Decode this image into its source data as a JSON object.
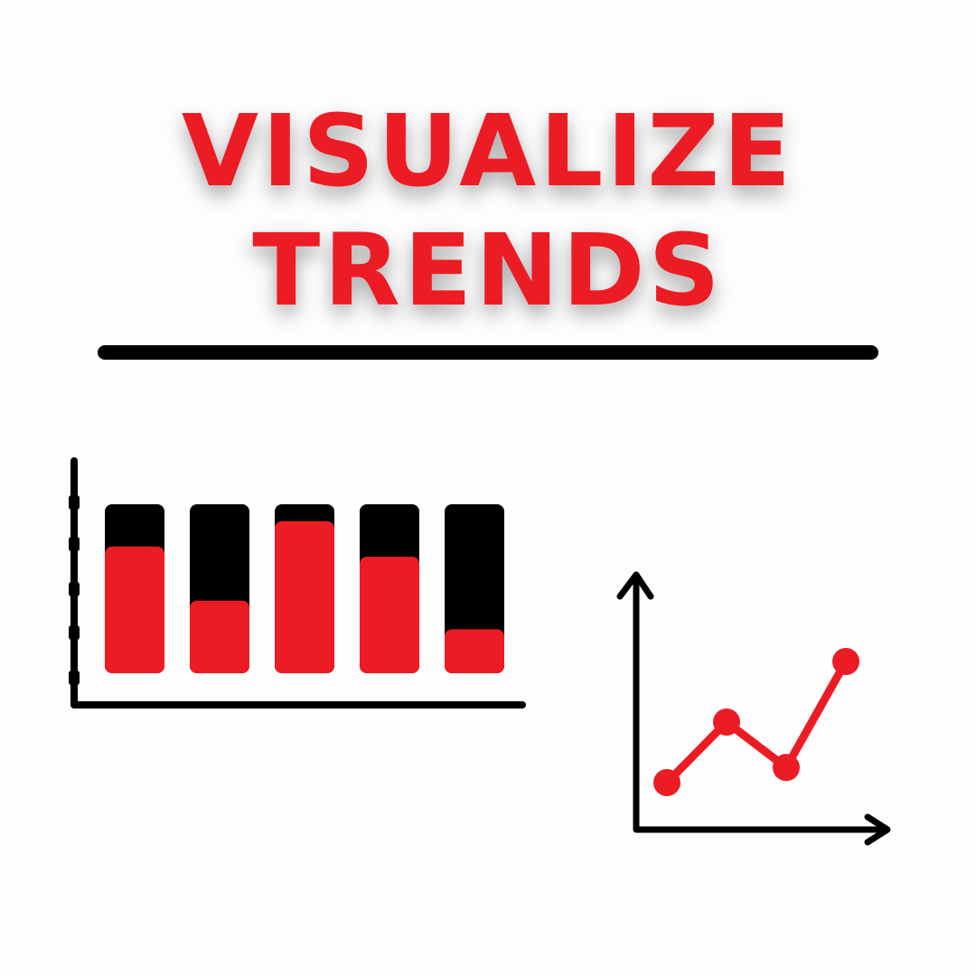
{
  "title": {
    "line1": "VISUALIZE",
    "line2": "TRENDS"
  },
  "colors": {
    "accent": "#ec1c24",
    "ink": "#000000",
    "background": "#fdfdfd"
  },
  "bar_icon": {
    "bars": [
      {
        "fill": 0.75
      },
      {
        "fill": 0.43
      },
      {
        "fill": 0.9
      },
      {
        "fill": 0.69
      },
      {
        "fill": 0.26
      }
    ]
  },
  "line_icon": {
    "points": [
      {
        "x": 1,
        "y": 1
      },
      {
        "x": 2,
        "y": 3
      },
      {
        "x": 3,
        "y": 1.5
      },
      {
        "x": 4,
        "y": 5
      }
    ]
  }
}
